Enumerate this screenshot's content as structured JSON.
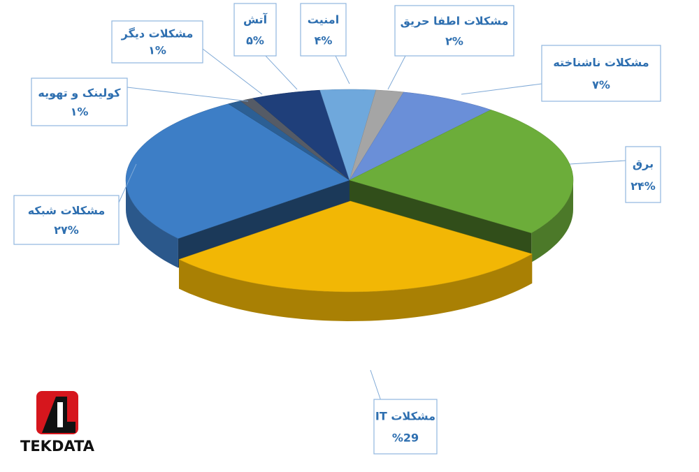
{
  "chart_data": {
    "type": "pie3d",
    "categories": [
      "مشکلات IT",
      "مشکلات شبکه",
      "کولینک و تهویه",
      "مشکلات دیگر",
      "آتش",
      "امنیت",
      "مشکلات اطفا حریق",
      "مشکلات ناشناخته",
      "برق"
    ],
    "values": [
      29,
      27,
      1,
      1,
      5,
      4,
      2,
      7,
      24
    ],
    "value_labels": [
      "%29",
      "۲۷%",
      "۱%",
      "۱%",
      "۵%",
      "۴%",
      "۲%",
      "۷%",
      "۲۴%"
    ],
    "colors": [
      "#f2b705",
      "#3d7ec6",
      "#2c5f94",
      "#555b66",
      "#1f3f7a",
      "#6fa8dc",
      "#a5a5a5",
      "#6a8fd8",
      "#6cad3a"
    ]
  },
  "logo": {
    "text": "TEKDATA"
  }
}
